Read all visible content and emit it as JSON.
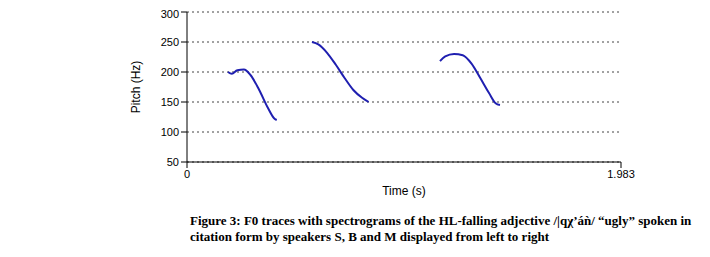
{
  "chart_data": {
    "type": "line",
    "title": "Figure 3:  F0 traces with spectrograms of the HL-falling adjective /|qχ’áǹ/ “ugly” spoken in citation form by speakers S, B and M displayed from left to right",
    "x_label": "Time (s)",
    "y_label": "Pitch (Hz)",
    "xlim": [
      0,
      1.983
    ],
    "xticks": [
      0,
      1.983
    ],
    "ylim": [
      50,
      300
    ],
    "yticks": [
      50,
      100,
      150,
      200,
      250,
      300
    ],
    "grid": true,
    "series": [
      {
        "name": "S",
        "color": "#1f1fb0",
        "x": [
          0.187,
          0.205,
          0.23,
          0.26,
          0.29,
          0.33,
          0.37,
          0.4,
          0.41
        ],
        "values": [
          200,
          197,
          203,
          204,
          195,
          170,
          140,
          122,
          120
        ]
      },
      {
        "name": "B",
        "color": "#1f1fb0",
        "x": [
          0.571,
          0.6,
          0.64,
          0.68,
          0.72,
          0.76,
          0.8,
          0.83
        ],
        "values": [
          250,
          246,
          232,
          212,
          190,
          170,
          157,
          150
        ]
      },
      {
        "name": "M",
        "color": "#1f1fb0",
        "x": [
          1.156,
          1.18,
          1.22,
          1.26,
          1.3,
          1.34,
          1.38,
          1.41,
          1.43
        ],
        "values": [
          218,
          226,
          230,
          228,
          214,
          190,
          165,
          148,
          145
        ]
      }
    ]
  }
}
